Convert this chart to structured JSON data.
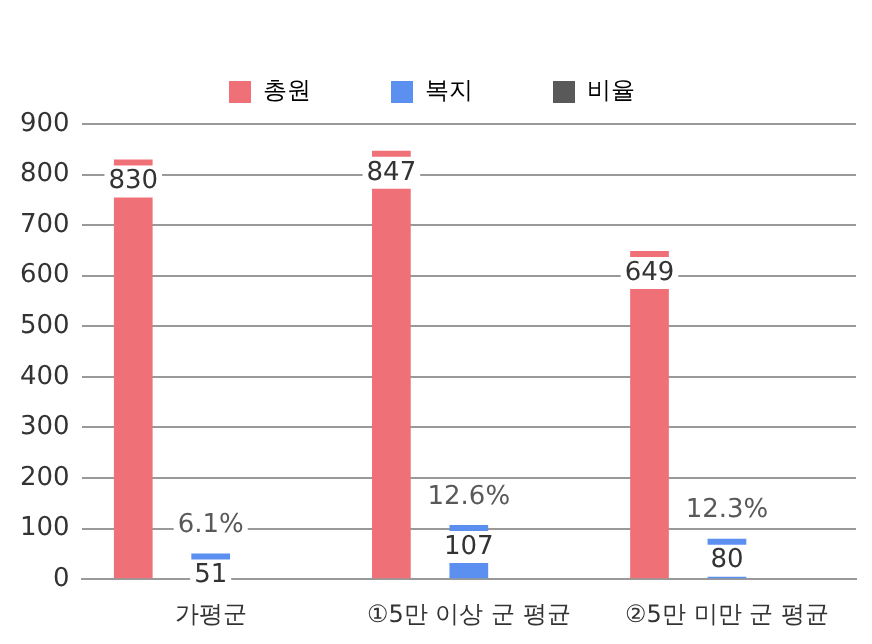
{
  "chart_data": {
    "type": "bar",
    "categories": [
      "가평군",
      "①5만 이상 군 평균",
      "②5만 미만 군 평균"
    ],
    "series": [
      {
        "name": "총원",
        "color": "#f07078",
        "values": [
          830,
          847,
          649
        ],
        "data_labels": true
      },
      {
        "name": "복지",
        "color": "#5b8ff0",
        "values": [
          51,
          107,
          80
        ],
        "data_labels": true
      },
      {
        "name": "비율",
        "color": "#595959",
        "values": [
          null,
          null,
          null
        ]
      }
    ],
    "annotations": [
      {
        "text": "6.1%",
        "x": "가평군",
        "y": 51
      },
      {
        "text": "12.6%",
        "x": "①5만 이상 군 평균",
        "y": 107
      },
      {
        "text": "12.3%",
        "x": "②5만 미만 군 평균",
        "y": 80
      }
    ],
    "ylim": [
      0,
      900
    ],
    "yticks": [
      0,
      100,
      200,
      300,
      400,
      500,
      600,
      700,
      800,
      900
    ],
    "grid": "y",
    "legend": "top"
  }
}
